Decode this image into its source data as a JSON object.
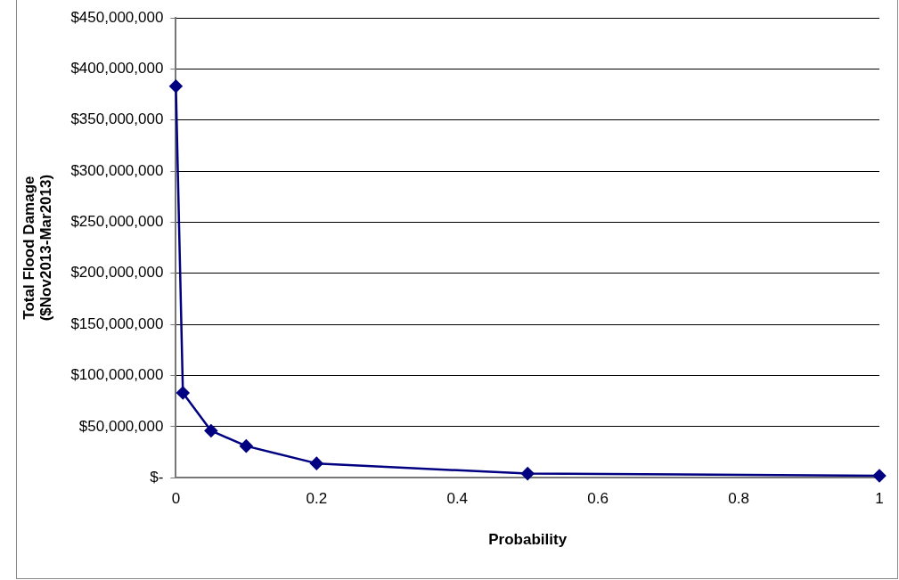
{
  "chart_data": {
    "type": "line",
    "xlabel": "Probability",
    "ylabel": "Total Flood Damage\n($Nov2013-Mar2013)",
    "x": [
      0,
      0.01,
      0.05,
      0.1,
      0.2,
      0.5,
      1
    ],
    "series": [
      {
        "color": "#000080",
        "values": [
          383000000,
          83000000,
          46000000,
          31000000,
          14000000,
          4000000,
          2000000
        ]
      }
    ],
    "xlim": [
      0,
      1
    ],
    "xticks": [
      0,
      0.2,
      0.4,
      0.6,
      0.8,
      1
    ],
    "ylim": [
      0,
      450000000
    ],
    "yticks": [
      {
        "value": 0,
        "label": "$-"
      },
      {
        "value": 50000000,
        "label": "$50,000,000"
      },
      {
        "value": 100000000,
        "label": "$100,000,000"
      },
      {
        "value": 150000000,
        "label": "$150,000,000"
      },
      {
        "value": 200000000,
        "label": "$200,000,000"
      },
      {
        "value": 250000000,
        "label": "$250,000,000"
      },
      {
        "value": 300000000,
        "label": "$300,000,000"
      },
      {
        "value": 350000000,
        "label": "$350,000,000"
      },
      {
        "value": 400000000,
        "label": "$400,000,000"
      },
      {
        "value": 450000000,
        "label": "$450,000,000"
      }
    ],
    "grid": "y",
    "legend": false,
    "marker": "diamond",
    "line_style": "solid"
  }
}
